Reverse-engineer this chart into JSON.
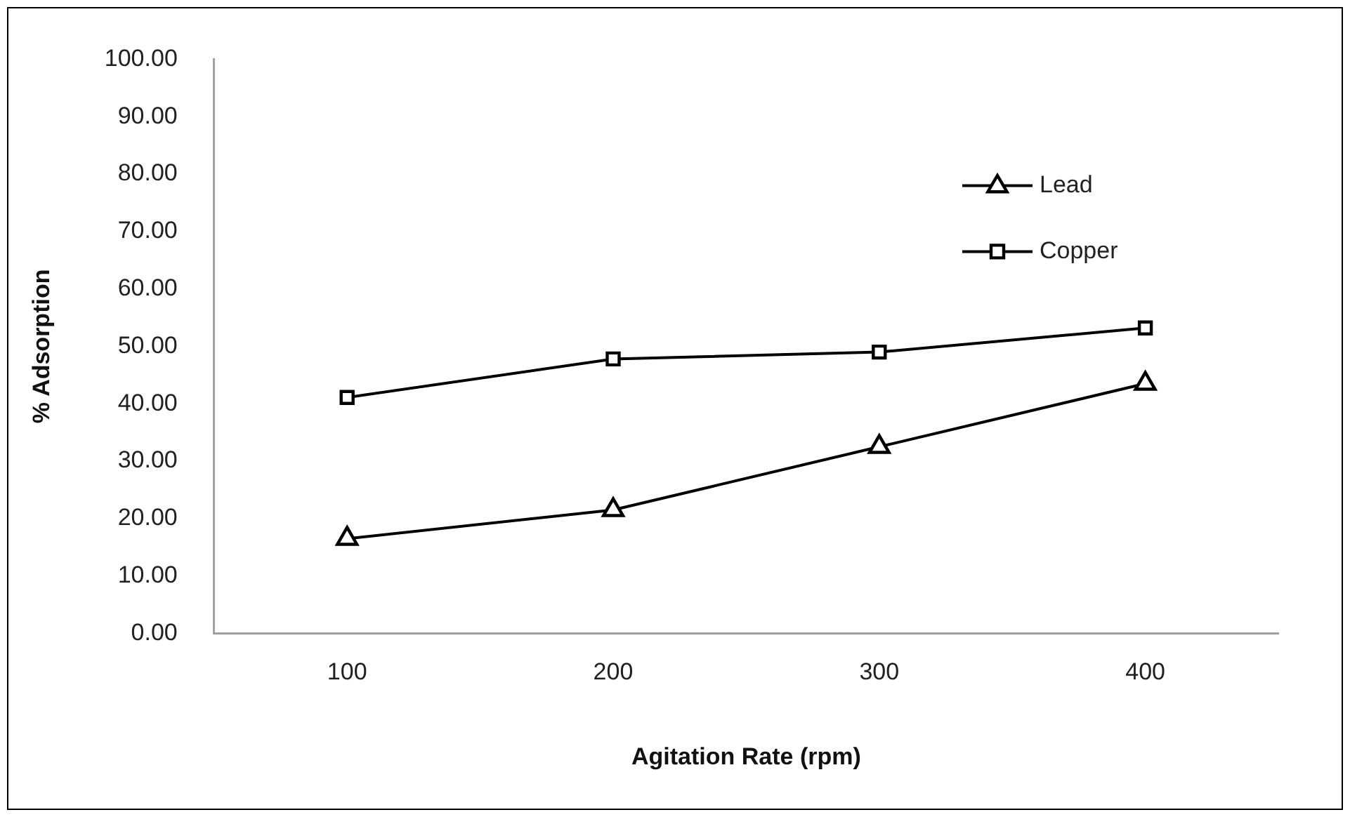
{
  "chart_data": {
    "type": "line",
    "xlabel": "Agitation Rate (rpm)",
    "ylabel": "% Adsorption",
    "categories": [
      "100",
      "200",
      "300",
      "400"
    ],
    "series": [
      {
        "name": "Lead",
        "color": "#000000",
        "marker": "triangle",
        "values": [
          16.5,
          21.5,
          32.5,
          43.5
        ]
      },
      {
        "name": "Copper",
        "color": "#000000",
        "marker": "square",
        "values": [
          41.1,
          47.8,
          49.0,
          53.2
        ]
      }
    ],
    "ylim": [
      0,
      100
    ],
    "yticks": [
      {
        "value": 0,
        "label": "0.00"
      },
      {
        "value": 10,
        "label": "10.00"
      },
      {
        "value": 20,
        "label": "20.00"
      },
      {
        "value": 30,
        "label": "30.00"
      },
      {
        "value": 40,
        "label": "40.00"
      },
      {
        "value": 50,
        "label": "50.00"
      },
      {
        "value": 60,
        "label": "60.00"
      },
      {
        "value": 70,
        "label": "70.00"
      },
      {
        "value": 80,
        "label": "80.00"
      },
      {
        "value": 90,
        "label": "90.00"
      },
      {
        "value": 100,
        "label": "100.00"
      }
    ],
    "grid": false,
    "legend": "top right",
    "line_style": "solid"
  }
}
